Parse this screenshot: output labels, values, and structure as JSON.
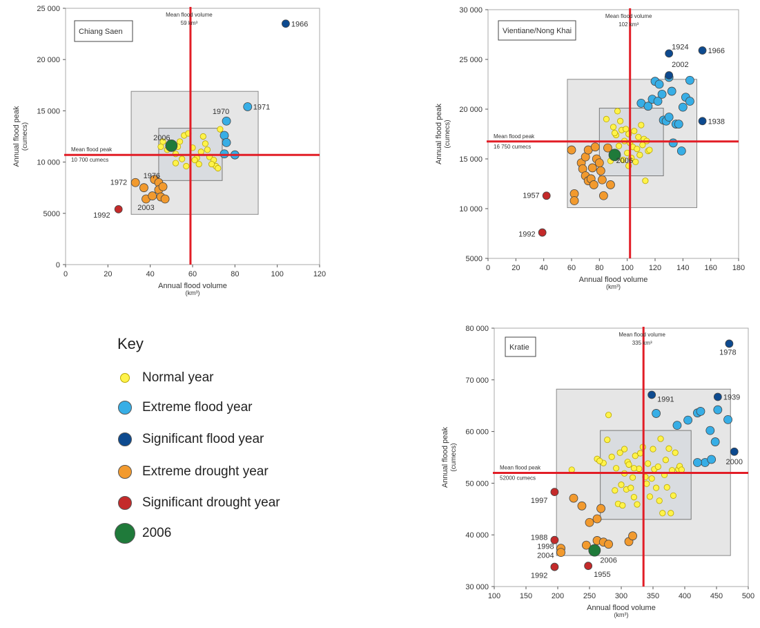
{
  "key": {
    "title": "Key",
    "items": [
      {
        "label": "Normal year",
        "color": "#fff34a",
        "size": "small"
      },
      {
        "label": "Extreme flood year",
        "color": "#37aee6",
        "size": "medium"
      },
      {
        "label": "Significant flood year",
        "color": "#0d4a8f",
        "size": "medium"
      },
      {
        "label": "Extreme drought year",
        "color": "#f29a2e",
        "size": "medium"
      },
      {
        "label": "Significant drought year",
        "color": "#c42a2a",
        "size": "medium"
      },
      {
        "label": "2006",
        "color": "#1f7a3a",
        "size": "large"
      }
    ]
  },
  "colors": {
    "normal": "#fff34a",
    "extreme_flood": "#37aee6",
    "significant_flood": "#0d4a8f",
    "extreme_drought": "#f29a2e",
    "significant_drought": "#c42a2a",
    "year_2006": "#1f7a3a",
    "mean_line": "#e21d26",
    "box": "#e6e6e6"
  },
  "chart_data": [
    {
      "type": "scatter",
      "station": "Chiang Saen",
      "xlabel": "Annual flood volume",
      "xunit": "(km³)",
      "ylabel": "Annual flood peak",
      "yunit": "(cumecs)",
      "xlim": [
        0,
        120
      ],
      "ylim": [
        0,
        25000
      ],
      "xticks": [
        0,
        20,
        40,
        60,
        80,
        100,
        120
      ],
      "yticks": [
        0,
        5000,
        10000,
        15000,
        20000,
        25000
      ],
      "ytick_labels": [
        "0",
        "5000",
        "10 000",
        "15 000",
        "20 000",
        "25 000"
      ],
      "mean_x": 59,
      "mean_y": 10700,
      "mean_x_label": [
        "Mean flood volume",
        "59 km³"
      ],
      "mean_y_label": [
        "Mean flood peak",
        "10 700 cumecs"
      ],
      "outer_box": {
        "x": [
          31,
          91
        ],
        "y": [
          4900,
          16900
        ]
      },
      "inner_box": {
        "x": [
          44,
          74
        ],
        "y": [
          8200,
          13300
        ]
      },
      "points": {
        "normal": [
          [
            45,
            11500
          ],
          [
            48,
            11200
          ],
          [
            52,
            10800
          ],
          [
            54,
            12000
          ],
          [
            56,
            12600
          ],
          [
            58,
            12800
          ],
          [
            60,
            11400
          ],
          [
            62,
            10400
          ],
          [
            63,
            9800
          ],
          [
            65,
            12500
          ],
          [
            66,
            11800
          ],
          [
            67,
            11200
          ],
          [
            68,
            10500
          ],
          [
            70,
            10200
          ],
          [
            71,
            9600
          ],
          [
            72,
            9400
          ],
          [
            73,
            13200
          ],
          [
            52,
            9900
          ],
          [
            55,
            10300
          ],
          [
            57,
            9600
          ],
          [
            61,
            10200
          ],
          [
            64,
            11000
          ],
          [
            69,
            9800
          ],
          [
            53,
            11500
          ],
          [
            46,
            12000
          ]
        ],
        "extreme_flood": [
          [
            76,
            14000
          ],
          [
            75,
            12600
          ],
          [
            76,
            11900
          ],
          [
            75,
            10800
          ],
          [
            80,
            10700
          ],
          [
            86,
            15400
          ]
        ],
        "significant_flood": [
          [
            104,
            23500
          ]
        ],
        "extreme_drought": [
          [
            33,
            8000
          ],
          [
            37,
            7500
          ],
          [
            38,
            6400
          ],
          [
            41,
            6700
          ],
          [
            42,
            8300
          ],
          [
            44,
            8000
          ],
          [
            44,
            7300
          ],
          [
            45,
            6600
          ],
          [
            46,
            7600
          ],
          [
            47,
            6400
          ]
        ],
        "significant_drought": [
          [
            25,
            5400
          ]
        ],
        "year_2006": [
          [
            50,
            11600
          ]
        ]
      },
      "labels": [
        {
          "text": "1966",
          "x": 104,
          "y": 23500
        },
        {
          "text": "1970",
          "x": 76,
          "y": 14000
        },
        {
          "text": "1971",
          "x": 86,
          "y": 15400
        },
        {
          "text": "2006",
          "x": 50,
          "y": 11600
        },
        {
          "text": "1972",
          "x": 33,
          "y": 8000
        },
        {
          "text": "1976",
          "x": 46,
          "y": 7600
        },
        {
          "text": "2003",
          "x": 38,
          "y": 6400
        },
        {
          "text": "1992",
          "x": 25,
          "y": 5400
        }
      ]
    },
    {
      "type": "scatter",
      "station": "Vientiane/Nong Khai",
      "xlabel": "Annual flood volume",
      "xunit": "(km³)",
      "ylabel": "Annual flood peak",
      "yunit": "(cumecs)",
      "xlim": [
        0,
        180
      ],
      "ylim": [
        5000,
        30000
      ],
      "xticks": [
        0,
        20,
        40,
        60,
        80,
        100,
        120,
        140,
        160,
        180
      ],
      "yticks": [
        5000,
        10000,
        15000,
        20000,
        25000,
        30000
      ],
      "ytick_labels": [
        "5000",
        "10 000",
        "15 000",
        "20 000",
        "25 000",
        "30 000"
      ],
      "mean_x": 102,
      "mean_y": 16750,
      "mean_x_label": [
        "Mean flood volume",
        "102 km³"
      ],
      "mean_y_label": [
        "Mean flood peak",
        "16 750 cumecs"
      ],
      "outer_box": {
        "x": [
          57,
          150
        ],
        "y": [
          10100,
          23000
        ]
      },
      "inner_box": {
        "x": [
          80,
          126
        ],
        "y": [
          13300,
          20100
        ]
      },
      "points": {
        "normal": [
          [
            85,
            19000
          ],
          [
            90,
            18200
          ],
          [
            92,
            17400
          ],
          [
            95,
            18800
          ],
          [
            96,
            17900
          ],
          [
            98,
            16800
          ],
          [
            99,
            18000
          ],
          [
            101,
            17500
          ],
          [
            102,
            16600
          ],
          [
            104,
            16200
          ],
          [
            105,
            17800
          ],
          [
            107,
            16000
          ],
          [
            108,
            17200
          ],
          [
            110,
            18400
          ],
          [
            111,
            16400
          ],
          [
            112,
            17000
          ],
          [
            114,
            16800
          ],
          [
            115,
            15800
          ],
          [
            113,
            12800
          ],
          [
            100,
            15600
          ],
          [
            97,
            14900
          ],
          [
            94,
            16300
          ],
          [
            93,
            19800
          ],
          [
            103,
            15100
          ],
          [
            106,
            14700
          ],
          [
            109,
            15400
          ],
          [
            116,
            15900
          ],
          [
            91,
            17600
          ],
          [
            88,
            14800
          ],
          [
            101,
            14300
          ]
        ],
        "extreme_flood": [
          [
            110,
            20600
          ],
          [
            115,
            20300
          ],
          [
            118,
            21000
          ],
          [
            120,
            22800
          ],
          [
            122,
            20800
          ],
          [
            123,
            22500
          ],
          [
            125,
            21500
          ],
          [
            126,
            18900
          ],
          [
            128,
            18800
          ],
          [
            130,
            19200
          ],
          [
            132,
            21800
          ],
          [
            135,
            18500
          ],
          [
            137,
            18500
          ],
          [
            140,
            20200
          ],
          [
            142,
            21200
          ],
          [
            145,
            22900
          ],
          [
            145,
            20800
          ],
          [
            130,
            23200
          ],
          [
            133,
            16600
          ],
          [
            139,
            15800
          ]
        ],
        "significant_flood": [
          [
            130,
            25600
          ],
          [
            154,
            25900
          ],
          [
            130,
            23400
          ],
          [
            154,
            18800
          ]
        ],
        "extreme_drought": [
          [
            60,
            15900
          ],
          [
            62,
            11500
          ],
          [
            62,
            10800
          ],
          [
            67,
            14600
          ],
          [
            68,
            14000
          ],
          [
            70,
            15200
          ],
          [
            70,
            13300
          ],
          [
            72,
            12800
          ],
          [
            72,
            15900
          ],
          [
            74,
            13000
          ],
          [
            75,
            14100
          ],
          [
            76,
            12400
          ],
          [
            77,
            16200
          ],
          [
            78,
            15000
          ],
          [
            80,
            14600
          ],
          [
            81,
            13800
          ],
          [
            82,
            12900
          ],
          [
            83,
            11300
          ],
          [
            86,
            16100
          ],
          [
            88,
            12400
          ]
        ],
        "significant_drought": [
          [
            42,
            11300
          ],
          [
            39,
            7600
          ]
        ],
        "year_2006": [
          [
            91,
            15400
          ]
        ]
      },
      "labels": [
        {
          "text": "1924",
          "x": 130,
          "y": 25600
        },
        {
          "text": "1966",
          "x": 154,
          "y": 25900
        },
        {
          "text": "2002",
          "x": 130,
          "y": 23400
        },
        {
          "text": "1938",
          "x": 154,
          "y": 18800
        },
        {
          "text": "2006",
          "x": 91,
          "y": 15400
        },
        {
          "text": "1957",
          "x": 42,
          "y": 11300
        },
        {
          "text": "1992",
          "x": 39,
          "y": 7600
        }
      ]
    },
    {
      "type": "scatter",
      "station": "Kratie",
      "xlabel": "Annual flood volume",
      "xunit": "(km³)",
      "ylabel": "Annual flood peak",
      "yunit": "(cumecs)",
      "xlim": [
        100,
        500
      ],
      "ylim": [
        30000,
        80000
      ],
      "xticks": [
        100,
        150,
        200,
        250,
        300,
        350,
        400,
        450,
        500
      ],
      "yticks": [
        30000,
        40000,
        50000,
        60000,
        70000,
        80000
      ],
      "ytick_labels": [
        "30 000",
        "40 000",
        "50 000",
        "60 000",
        "70 000",
        "80 000"
      ],
      "mean_x": 335,
      "mean_y": 52000,
      "mean_x_label": [
        "Mean flood volume",
        "335 km³"
      ],
      "mean_y_label": [
        "Mean flood peak",
        "52000 cumecs"
      ],
      "outer_box": {
        "x": [
          198,
          472
        ],
        "y": [
          36000,
          68200
        ]
      },
      "inner_box": {
        "x": [
          267,
          410
        ],
        "y": [
          43000,
          60200
        ]
      },
      "points": {
        "normal": [
          [
            222,
            52600
          ],
          [
            262,
            54700
          ],
          [
            272,
            53900
          ],
          [
            278,
            58400
          ],
          [
            280,
            63200
          ],
          [
            285,
            55100
          ],
          [
            290,
            48600
          ],
          [
            292,
            52900
          ],
          [
            295,
            46000
          ],
          [
            298,
            55900
          ],
          [
            300,
            49700
          ],
          [
            302,
            45700
          ],
          [
            305,
            56600
          ],
          [
            308,
            48800
          ],
          [
            310,
            54100
          ],
          [
            312,
            53600
          ],
          [
            315,
            49100
          ],
          [
            318,
            51100
          ],
          [
            320,
            47300
          ],
          [
            322,
            55300
          ],
          [
            325,
            45900
          ],
          [
            328,
            52800
          ],
          [
            330,
            55800
          ],
          [
            334,
            57000
          ],
          [
            338,
            51200
          ],
          [
            340,
            49900
          ],
          [
            342,
            53800
          ],
          [
            345,
            47400
          ],
          [
            348,
            50900
          ],
          [
            350,
            56600
          ],
          [
            352,
            52700
          ],
          [
            355,
            49100
          ],
          [
            358,
            53200
          ],
          [
            360,
            46600
          ],
          [
            362,
            58600
          ],
          [
            365,
            44200
          ],
          [
            368,
            51600
          ],
          [
            370,
            54500
          ],
          [
            372,
            49200
          ],
          [
            375,
            56700
          ],
          [
            378,
            44200
          ],
          [
            380,
            52500
          ],
          [
            382,
            47600
          ],
          [
            385,
            55900
          ],
          [
            390,
            52700
          ],
          [
            392,
            53300
          ],
          [
            395,
            52600
          ],
          [
            320,
            52900
          ],
          [
            305,
            51900
          ],
          [
            266,
            54300
          ]
        ],
        "extreme_flood": [
          [
            355,
            63500
          ],
          [
            388,
            61200
          ],
          [
            405,
            62200
          ],
          [
            420,
            63600
          ],
          [
            425,
            63900
          ],
          [
            432,
            54000
          ],
          [
            440,
            60200
          ],
          [
            442,
            54600
          ],
          [
            448,
            58000
          ],
          [
            452,
            64200
          ],
          [
            468,
            62300
          ],
          [
            420,
            54000
          ]
        ],
        "significant_flood": [
          [
            348,
            67100
          ],
          [
            452,
            66700
          ],
          [
            470,
            77000
          ],
          [
            478,
            56100
          ]
        ],
        "extreme_drought": [
          [
            205,
            37400
          ],
          [
            205,
            36600
          ],
          [
            225,
            47100
          ],
          [
            238,
            45600
          ],
          [
            245,
            38000
          ],
          [
            250,
            42400
          ],
          [
            262,
            43100
          ],
          [
            262,
            38900
          ],
          [
            268,
            45100
          ],
          [
            272,
            38600
          ],
          [
            280,
            38200
          ],
          [
            312,
            38700
          ],
          [
            318,
            39800
          ]
        ],
        "significant_drought": [
          [
            195,
            48300
          ],
          [
            195,
            39000
          ],
          [
            195,
            33800
          ],
          [
            248,
            34000
          ]
        ],
        "year_2006": [
          [
            258,
            37000
          ]
        ]
      },
      "labels": [
        {
          "text": "1978",
          "x": 470,
          "y": 77000
        },
        {
          "text": "1991",
          "x": 348,
          "y": 67100
        },
        {
          "text": "1939",
          "x": 452,
          "y": 66700
        },
        {
          "text": "2000",
          "x": 478,
          "y": 56100
        },
        {
          "text": "1997",
          "x": 195,
          "y": 48300
        },
        {
          "text": "1988",
          "x": 195,
          "y": 39000
        },
        {
          "text": "1998",
          "x": 205,
          "y": 37400
        },
        {
          "text": "2004",
          "x": 205,
          "y": 36600
        },
        {
          "text": "2006",
          "x": 258,
          "y": 37000
        },
        {
          "text": "1992",
          "x": 195,
          "y": 33800
        },
        {
          "text": "1955",
          "x": 248,
          "y": 34000
        }
      ]
    }
  ]
}
